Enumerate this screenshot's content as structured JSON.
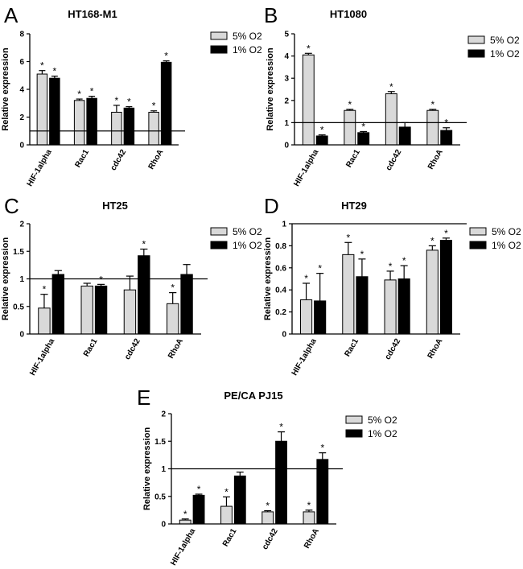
{
  "figure": {
    "series_names": [
      "5% O2",
      "1% O2"
    ],
    "series_colors": [
      "#d9d9d9",
      "#000000"
    ],
    "ylabel": "Relative expression",
    "categories": [
      "HIF-1alpha",
      "Rac1",
      "cdc42",
      "RhoA"
    ],
    "significance_marker": "*"
  },
  "chart_data": [
    {
      "type": "bar",
      "panel": "A",
      "title": "HT168-M1",
      "ylim": [
        0,
        8
      ],
      "yticks": [
        0,
        2,
        4,
        6,
        8
      ],
      "reference_line": 1,
      "categories": [
        "HIF-1alpha",
        "Rac1",
        "cdc42",
        "RhoA"
      ],
      "series": [
        {
          "name": "5% O2",
          "values": [
            5.1,
            3.2,
            2.35,
            2.35
          ],
          "errors": [
            0.25,
            0.1,
            0.5,
            0.1
          ],
          "sig": [
            true,
            true,
            true,
            true
          ]
        },
        {
          "name": "1% O2",
          "values": [
            4.8,
            3.35,
            2.65,
            5.95
          ],
          "errors": [
            0.15,
            0.15,
            0.1,
            0.1
          ],
          "sig": [
            true,
            true,
            true,
            true
          ]
        }
      ]
    },
    {
      "type": "bar",
      "panel": "B",
      "title": "HT1080",
      "ylim": [
        0,
        5
      ],
      "yticks": [
        0,
        1,
        2,
        3,
        4,
        5
      ],
      "reference_line": 1,
      "categories": [
        "HIF-1alpha",
        "Rac1",
        "cdc42",
        "RhoA"
      ],
      "series": [
        {
          "name": "5% O2",
          "values": [
            4.05,
            1.55,
            2.3,
            1.55
          ],
          "errors": [
            0.07,
            0.05,
            0.1,
            0.05
          ],
          "sig": [
            true,
            true,
            true,
            true
          ]
        },
        {
          "name": "1% O2",
          "values": [
            0.4,
            0.55,
            0.8,
            0.65
          ],
          "errors": [
            0.05,
            0.05,
            0.2,
            0.12
          ],
          "sig": [
            true,
            true,
            false,
            true
          ]
        }
      ]
    },
    {
      "type": "bar",
      "panel": "C",
      "title": "HT25",
      "ylim": [
        0,
        2
      ],
      "yticks": [
        0,
        0.5,
        1,
        1.5,
        2
      ],
      "reference_line": 1,
      "categories": [
        "HIF-1alpha",
        "Rac1",
        "cdc42",
        "RhoA"
      ],
      "series": [
        {
          "name": "5% O2",
          "values": [
            0.47,
            0.87,
            0.8,
            0.55
          ],
          "errors": [
            0.25,
            0.05,
            0.25,
            0.2
          ],
          "sig": [
            true,
            false,
            false,
            true
          ]
        },
        {
          "name": "1% O2",
          "values": [
            1.08,
            0.87,
            1.42,
            1.08
          ],
          "errors": [
            0.07,
            0.03,
            0.12,
            0.18
          ],
          "sig": [
            false,
            true,
            true,
            false
          ]
        }
      ]
    },
    {
      "type": "bar",
      "panel": "D",
      "title": "HT29",
      "ylim": [
        0,
        1
      ],
      "yticks": [
        0,
        0.2,
        0.4,
        0.6,
        0.8,
        1
      ],
      "reference_line": 1,
      "categories": [
        "HIF-1alpha",
        "Rac1",
        "cdc42",
        "RhoA"
      ],
      "series": [
        {
          "name": "5% O2",
          "values": [
            0.31,
            0.72,
            0.49,
            0.76
          ],
          "errors": [
            0.15,
            0.11,
            0.08,
            0.04
          ],
          "sig": [
            true,
            true,
            true,
            true
          ]
        },
        {
          "name": "1% O2",
          "values": [
            0.3,
            0.52,
            0.5,
            0.85
          ],
          "errors": [
            0.25,
            0.16,
            0.12,
            0.02
          ],
          "sig": [
            true,
            true,
            true,
            true
          ]
        }
      ]
    },
    {
      "type": "bar",
      "panel": "E",
      "title": "PE/CA PJ15",
      "ylim": [
        0,
        2
      ],
      "yticks": [
        0,
        0.5,
        1,
        1.5,
        2
      ],
      "reference_line": 1,
      "categories": [
        "HIF-1alpha",
        "Rac1",
        "cdc42",
        "RhoA"
      ],
      "series": [
        {
          "name": "5% O2",
          "values": [
            0.07,
            0.32,
            0.22,
            0.22
          ],
          "errors": [
            0.02,
            0.17,
            0.02,
            0.03
          ],
          "sig": [
            true,
            true,
            true,
            true
          ]
        },
        {
          "name": "1% O2",
          "values": [
            0.52,
            0.87,
            1.5,
            1.17
          ],
          "errors": [
            0.02,
            0.07,
            0.17,
            0.12
          ],
          "sig": [
            true,
            false,
            true,
            true
          ]
        }
      ]
    }
  ]
}
